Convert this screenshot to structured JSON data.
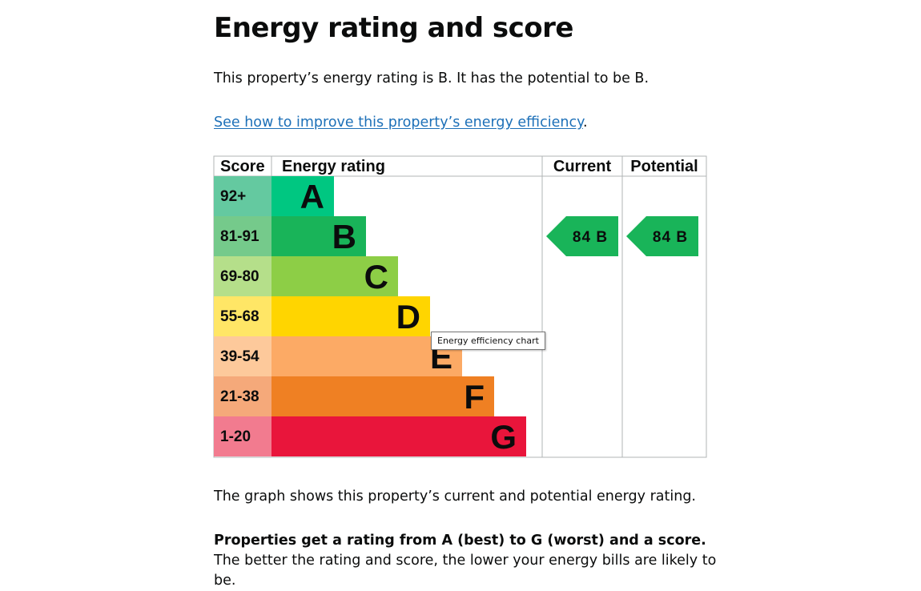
{
  "page": {
    "title": "Energy rating and score",
    "rating_sentence": "This property’s energy rating is B. It has the potential to be B.",
    "improve_link": "See how to improve this property’s energy efficiency",
    "improve_link_suffix": ".",
    "graph_description": "The graph shows this property’s current and potential energy rating.",
    "ratings_bold": "Properties get a rating from A (best) to G (worst) and a score.",
    "ratings_rest": " The better the rating and score, the lower your energy bills are likely to be.",
    "tooltip": "Energy efficiency chart"
  },
  "chart_data": {
    "type": "table",
    "headers": {
      "score": "Score",
      "rating": "Energy rating",
      "current": "Current",
      "potential": "Potential"
    },
    "bands": [
      {
        "letter": "A",
        "score": "92+",
        "color": "#00c781",
        "score_bg": "#64c9a0"
      },
      {
        "letter": "B",
        "score": "81-91",
        "color": "#19b459",
        "score_bg": "#75ca8b"
      },
      {
        "letter": "C",
        "score": "69-80",
        "color": "#8dce46",
        "score_bg": "#b5df8a"
      },
      {
        "letter": "D",
        "score": "55-68",
        "color": "#ffd500",
        "score_bg": "#ffe666"
      },
      {
        "letter": "E",
        "score": "39-54",
        "color": "#fcaa65",
        "score_bg": "#fdc99b"
      },
      {
        "letter": "F",
        "score": "21-38",
        "color": "#ef8023",
        "score_bg": "#f5a97a"
      },
      {
        "letter": "G",
        "score": "1-20",
        "color": "#e9153b",
        "score_bg": "#f27b8f"
      }
    ],
    "current": {
      "score": 84,
      "letter": "B",
      "label": "84 B",
      "color": "#19b459"
    },
    "potential": {
      "score": 84,
      "letter": "B",
      "label": "84 B",
      "color": "#19b459"
    }
  }
}
